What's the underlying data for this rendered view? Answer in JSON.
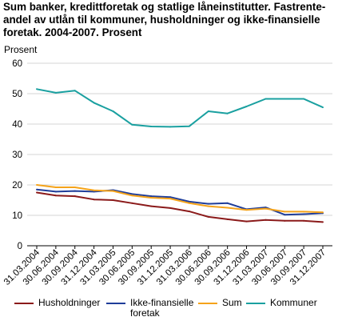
{
  "chart_data": {
    "type": "line",
    "title_lines": [
      "Sum banker, kredittforetak og statlige låneinstitutter. Fastrente-",
      "andel av utlån til kommuner, husholdninger og ikke-finansielle",
      "foretak. 2004-2007. Prosent"
    ],
    "ylabel": "Prosent",
    "ylim": [
      0,
      60
    ],
    "yticks": [
      "0",
      "10",
      "20",
      "30",
      "40",
      "50",
      "60"
    ],
    "grid": true,
    "legend_position": "bottom",
    "categories": [
      "31.03.2004",
      "30.06.2004",
      "30.09.2004",
      "31.12.2004",
      "31.03.2005",
      "30.06.2005",
      "30.09.2005",
      "31.12.2005",
      "31.03.2006",
      "30.06.2006",
      "30.09.2006",
      "31.12.2006",
      "31.03.2007",
      "30.06.2007",
      "30.09.2007",
      "31.12.2007"
    ],
    "series": [
      {
        "name": "Husholdninger",
        "color": "#8b1a1a",
        "values": [
          17.5,
          16.5,
          16.3,
          15.2,
          15.0,
          14.0,
          13.0,
          12.4,
          11.3,
          9.5,
          8.7,
          8.0,
          8.5,
          8.2,
          8.2,
          7.8
        ]
      },
      {
        "name": "Ikke-finansielle\nforetak",
        "color": "#1f3d99",
        "values": [
          18.5,
          17.8,
          18.0,
          17.8,
          18.3,
          17.0,
          16.3,
          16.0,
          14.5,
          13.8,
          14.0,
          12.0,
          12.6,
          10.2,
          10.4,
          10.7
        ]
      },
      {
        "name": "Sum",
        "color": "#f5a31a",
        "values": [
          20.0,
          19.2,
          19.2,
          18.2,
          18.0,
          16.5,
          15.8,
          15.5,
          14.0,
          13.0,
          12.5,
          11.8,
          12.2,
          11.2,
          11.2,
          11.0
        ]
      },
      {
        "name": "Kommuner",
        "color": "#1aa0a0",
        "values": [
          51.5,
          50.3,
          51.0,
          47.0,
          44.2,
          39.8,
          39.2,
          39.1,
          39.3,
          44.2,
          43.5,
          45.8,
          48.3,
          48.3,
          48.3,
          45.5
        ]
      }
    ]
  }
}
